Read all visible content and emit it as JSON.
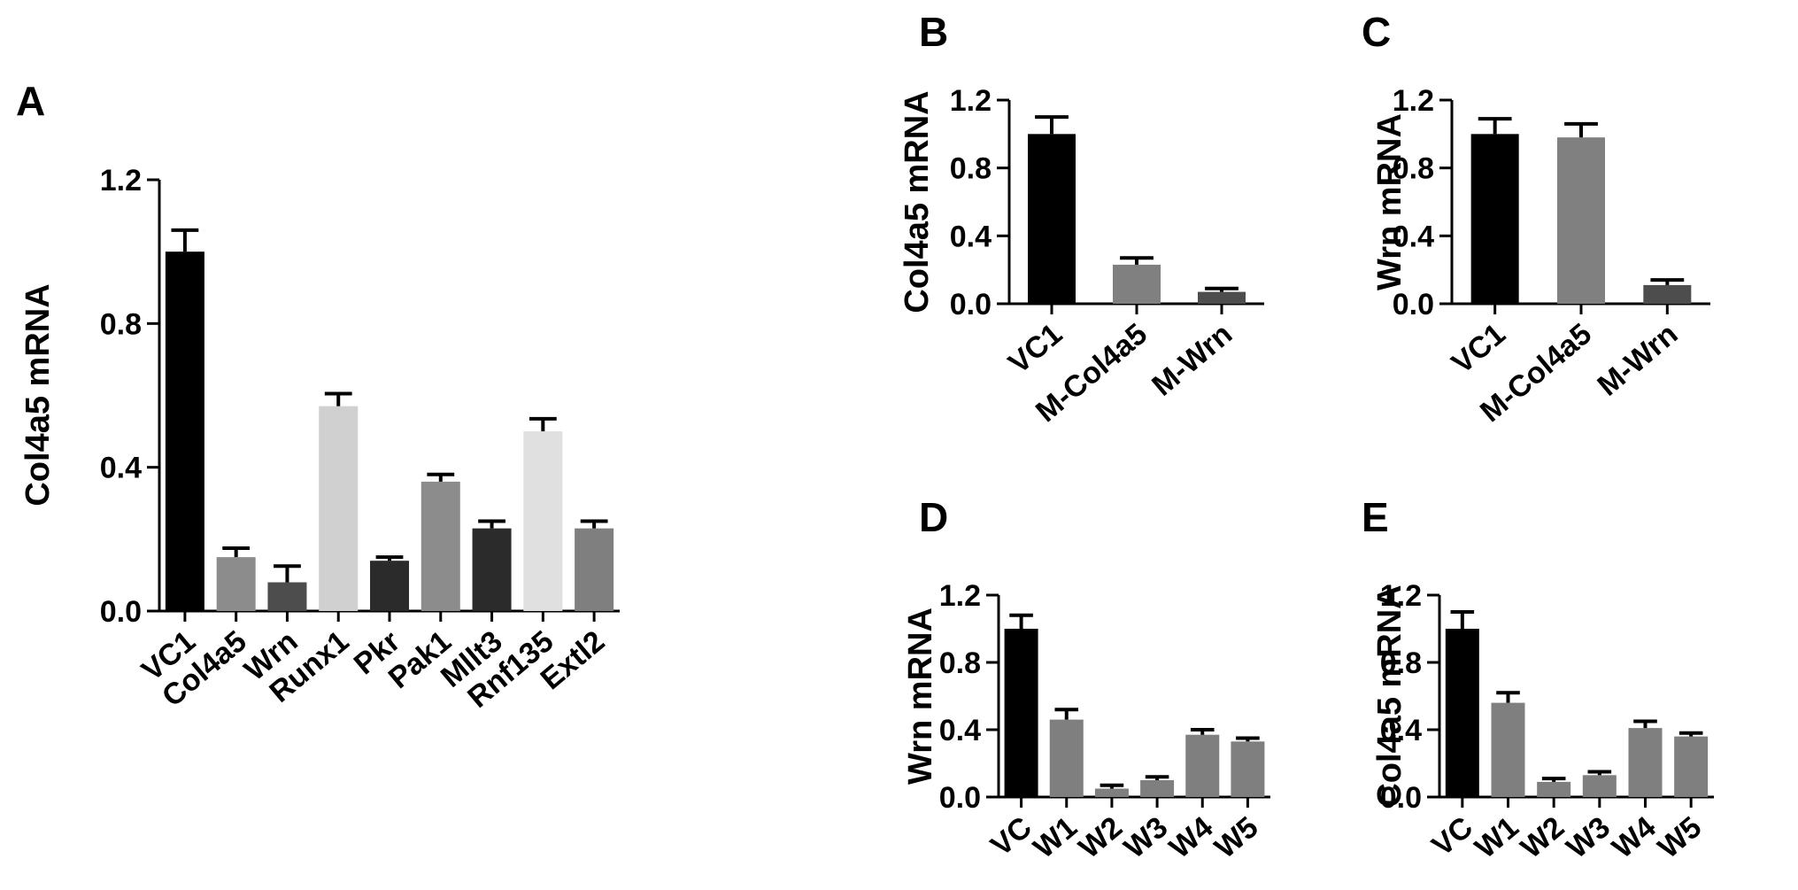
{
  "chart_data": [
    {
      "panel": "A",
      "type": "bar",
      "ylabel": "Col4a5 mRNA",
      "ylim": [
        0,
        1.2
      ],
      "yticks": [
        "0.0",
        "0.4",
        "0.8",
        "1.2"
      ],
      "categories": [
        "VC1",
        "Col4a5",
        "Wrn",
        "Runx1",
        "Pkr",
        "Pak1",
        "Mllt3",
        "Rnf135",
        "Extl2"
      ],
      "values": [
        1.0,
        0.15,
        0.08,
        0.57,
        0.14,
        0.36,
        0.23,
        0.5,
        0.23
      ],
      "errors": [
        0.06,
        0.025,
        0.045,
        0.035,
        0.01,
        0.02,
        0.02,
        0.035,
        0.02
      ],
      "colors": [
        "#000000",
        "#8c8c8c",
        "#4d4d4d",
        "#d0d0d0",
        "#2b2b2b",
        "#8c8c8c",
        "#2b2b2b",
        "#e0e0e0",
        "#7f7f7f"
      ]
    },
    {
      "panel": "B",
      "type": "bar",
      "ylabel": "Col4a5 mRNA",
      "ylim": [
        0,
        1.2
      ],
      "yticks": [
        "0.0",
        "0.4",
        "0.8",
        "1.2"
      ],
      "categories": [
        "VC1",
        "M-Col4a5",
        "M-Wrn"
      ],
      "values": [
        1.0,
        0.23,
        0.07
      ],
      "errors": [
        0.1,
        0.04,
        0.02
      ],
      "colors": [
        "#000000",
        "#808080",
        "#4d4d4d"
      ]
    },
    {
      "panel": "C",
      "type": "bar",
      "ylabel": "Wrn mRNA",
      "ylim": [
        0,
        1.2
      ],
      "yticks": [
        "0.0",
        "0.4",
        "0.8",
        "1.2"
      ],
      "categories": [
        "VC1",
        "M-Col4a5",
        "M-Wrn"
      ],
      "values": [
        1.0,
        0.98,
        0.11
      ],
      "errors": [
        0.09,
        0.08,
        0.03
      ],
      "colors": [
        "#000000",
        "#808080",
        "#4d4d4d"
      ]
    },
    {
      "panel": "D",
      "type": "bar",
      "ylabel": "Wrn mRNA",
      "ylim": [
        0,
        1.2
      ],
      "yticks": [
        "0.0",
        "0.4",
        "0.8",
        "1.2"
      ],
      "categories": [
        "VC",
        "W1",
        "W2",
        "W3",
        "W4",
        "W5"
      ],
      "values": [
        1.0,
        0.46,
        0.05,
        0.1,
        0.37,
        0.33
      ],
      "errors": [
        0.08,
        0.06,
        0.02,
        0.02,
        0.03,
        0.02
      ],
      "colors": [
        "#000000",
        "#7f7f7f",
        "#7f7f7f",
        "#7f7f7f",
        "#7f7f7f",
        "#7f7f7f"
      ]
    },
    {
      "panel": "E",
      "type": "bar",
      "ylabel": "Col4a5 mRNA",
      "ylim": [
        0,
        1.2
      ],
      "yticks": [
        "0.0",
        "0.4",
        "0.8",
        "1.2"
      ],
      "categories": [
        "VC",
        "W1",
        "W2",
        "W3",
        "W4",
        "W5"
      ],
      "values": [
        1.0,
        0.56,
        0.09,
        0.13,
        0.41,
        0.36
      ],
      "errors": [
        0.1,
        0.06,
        0.02,
        0.02,
        0.04,
        0.02
      ],
      "colors": [
        "#000000",
        "#7f7f7f",
        "#7f7f7f",
        "#7f7f7f",
        "#7f7f7f",
        "#7f7f7f"
      ]
    }
  ]
}
